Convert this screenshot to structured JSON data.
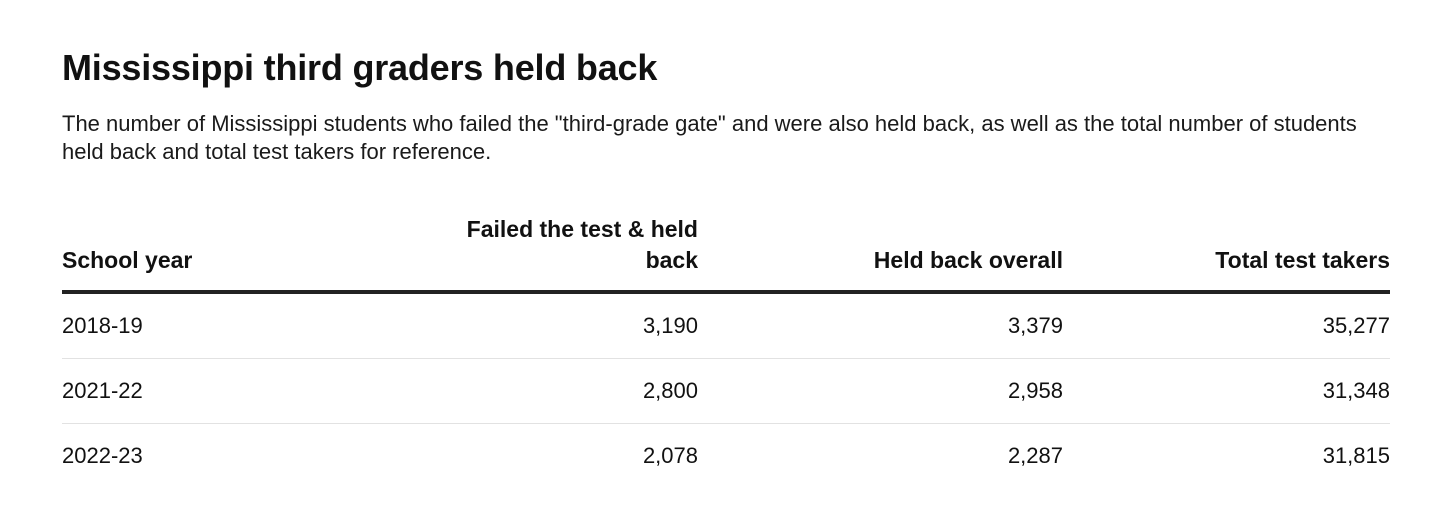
{
  "title": "Mississippi third graders held back",
  "subtitle": "The number of Mississippi students who failed the \"third-grade gate\" and were also held back, as well as the total number of students held back and total test takers for reference.",
  "chart_data": {
    "type": "table",
    "columns": [
      "School year",
      "Failed the test & held back",
      "Held back overall",
      "Total test takers"
    ],
    "rows": [
      [
        "2018-19",
        "3,190",
        "3,379",
        "35,277"
      ],
      [
        "2021-22",
        "2,800",
        "2,958",
        "31,348"
      ],
      [
        "2022-23",
        "2,078",
        "2,287",
        "31,815"
      ]
    ]
  }
}
